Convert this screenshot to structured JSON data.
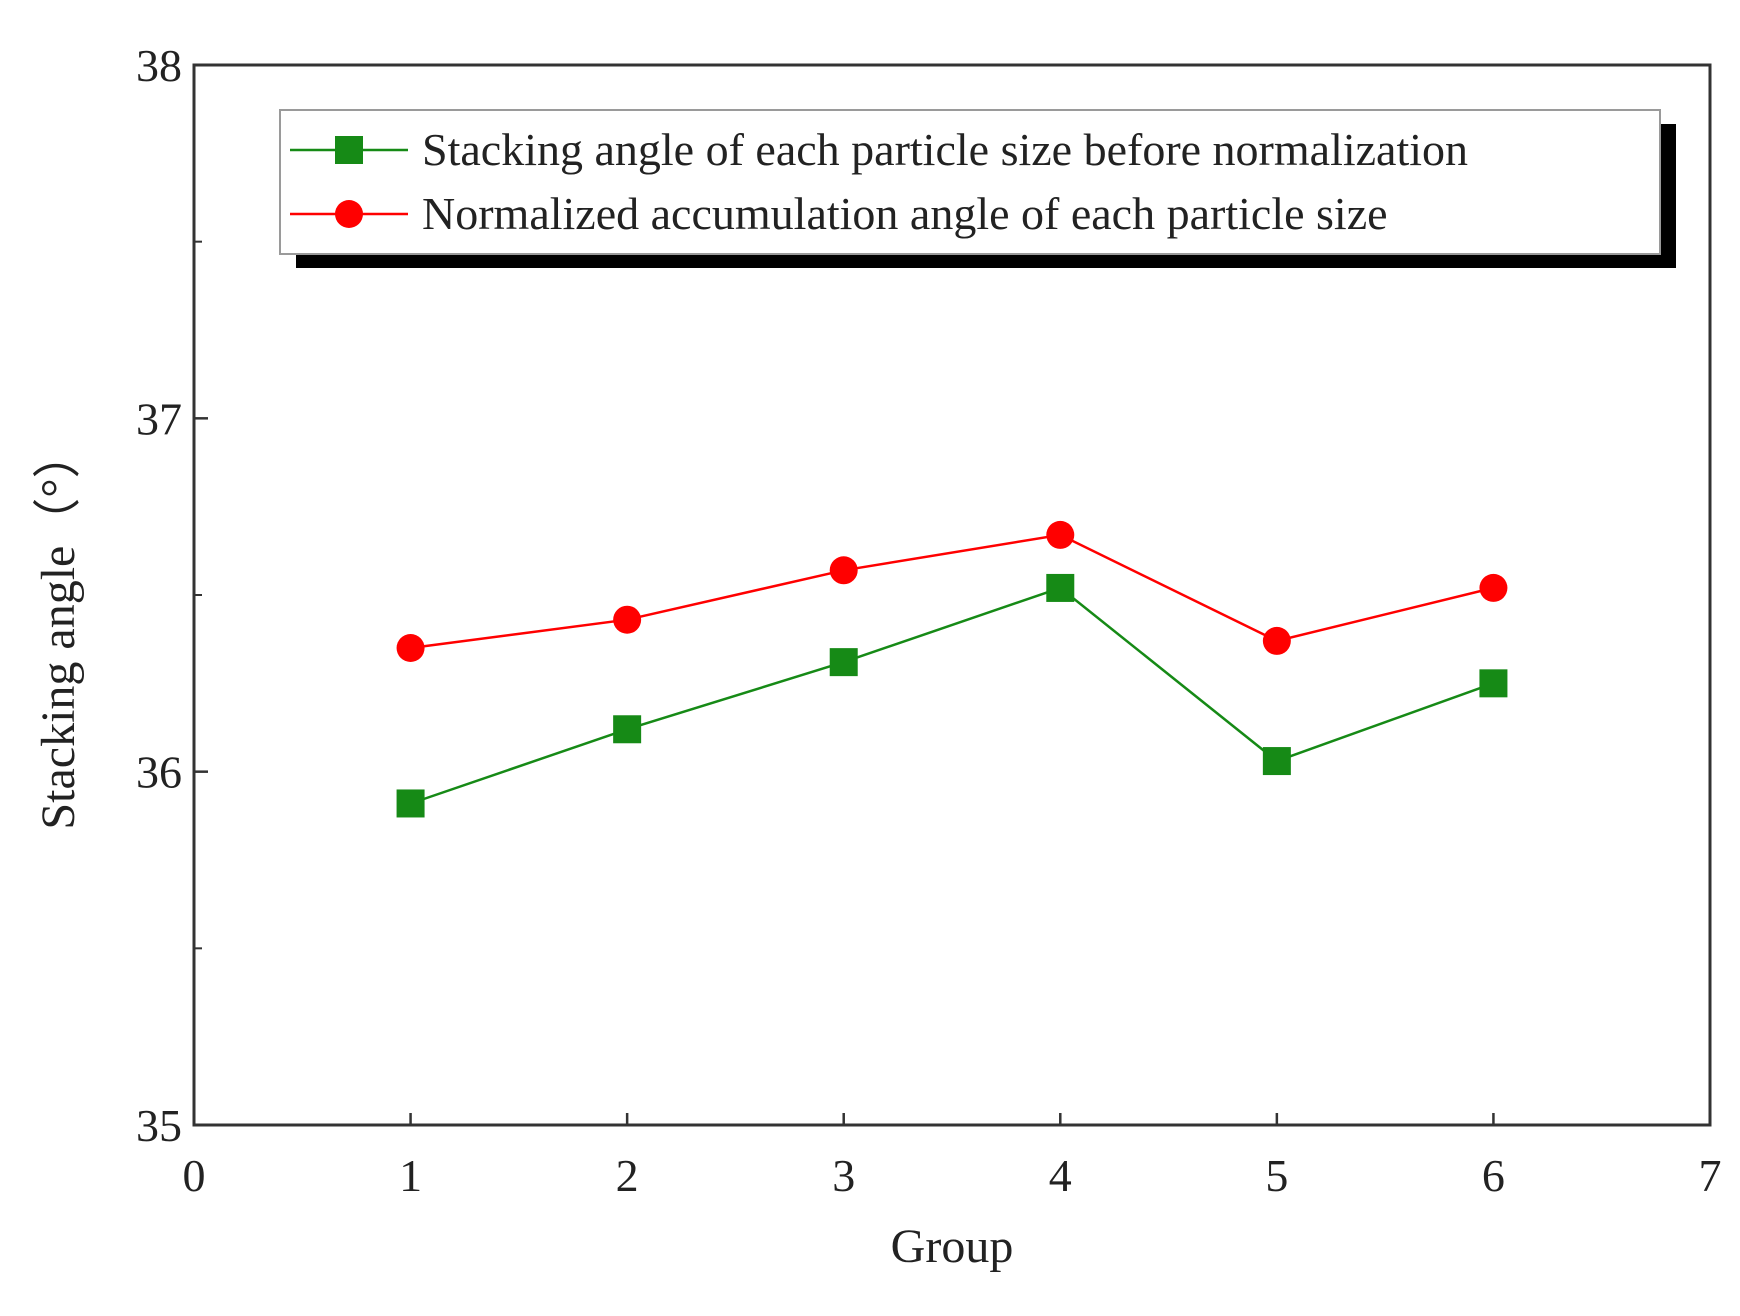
{
  "chart_data": {
    "type": "line",
    "title": "",
    "xlabel": "Group",
    "ylabel": "Stacking angle（°）",
    "xlim": [
      0,
      7
    ],
    "ylim": [
      35,
      38
    ],
    "xticks": [
      "0",
      "1",
      "2",
      "3",
      "4",
      "5",
      "6",
      "7"
    ],
    "yticks": [
      "35",
      "36",
      "37",
      "38"
    ],
    "grid": false,
    "legend_position": "top",
    "x": [
      1,
      2,
      3,
      4,
      5,
      6
    ],
    "series": [
      {
        "name": "Stacking angle of each particle size before normalization",
        "marker": "square",
        "color": "#168a16",
        "values": [
          35.91,
          36.12,
          36.31,
          36.52,
          36.03,
          36.25
        ]
      },
      {
        "name": "Normalized accumulation angle of each particle size",
        "marker": "circle",
        "color": "#ff0000",
        "values": [
          36.35,
          36.43,
          36.57,
          36.67,
          36.37,
          36.52
        ]
      }
    ]
  }
}
